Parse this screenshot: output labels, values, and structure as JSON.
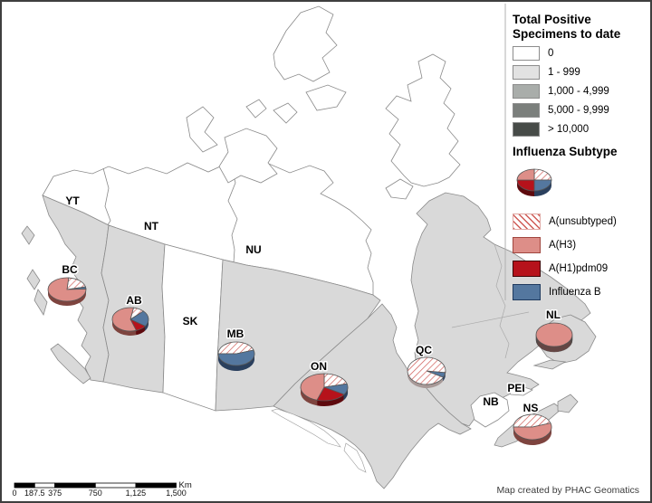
{
  "legend_specimens": {
    "title": "Total Positive Specimens to date",
    "classes": [
      {
        "label": "0",
        "color": "#ffffff"
      },
      {
        "label": "1 - 999",
        "color": "#e2e2e2"
      },
      {
        "label": "1,000 - 4,999",
        "color": "#a9adaa"
      },
      {
        "label": "5,000 - 9,999",
        "color": "#7b7f7c"
      },
      {
        "label": "> 10,000",
        "color": "#474b48"
      }
    ]
  },
  "legend_subtype": {
    "title": "Influenza Subtype",
    "items": [
      {
        "label": "A(unsubtyped)",
        "fill": "hatch",
        "border": "#dfa9a5",
        "rim": "#a89a98"
      },
      {
        "label": "A(H3)",
        "fill": "#dd8e88",
        "border": "#a0463f",
        "rim": "#7e443f"
      },
      {
        "label": "A(H1)pdm09",
        "fill": "#b6121b",
        "border": "#3d0406",
        "rim": "#5e0a0e"
      },
      {
        "label": "Influenza B",
        "fill": "#54779f",
        "border": "#1f3a5f",
        "rim": "#2b405e"
      }
    ],
    "example_slices": [
      {
        "label": "A(unsubtyped)",
        "pct": 25
      },
      {
        "label": "Influenza B",
        "pct": 25
      },
      {
        "label": "A(H1)pdm09",
        "pct": 25
      },
      {
        "label": "A(H3)",
        "pct": 25
      }
    ],
    "example_start_deg": 0
  },
  "map": {
    "region_labels": [
      "YT",
      "NT",
      "NU",
      "BC",
      "AB",
      "SK",
      "MB",
      "ON",
      "QC",
      "NL",
      "PEI",
      "NB",
      "NS"
    ]
  },
  "chart_data": [
    {
      "type": "pie",
      "region": "BC",
      "start_deg": 5,
      "slices": [
        {
          "label": "A(unsubtyped)",
          "pct": 20
        },
        {
          "label": "Influenza B",
          "pct": 3
        },
        {
          "label": "A(H3)",
          "pct": 77
        }
      ]
    },
    {
      "type": "pie",
      "region": "AB",
      "start_deg": 10,
      "slices": [
        {
          "label": "A(unsubtyped)",
          "pct": 10
        },
        {
          "label": "Influenza B",
          "pct": 22
        },
        {
          "label": "A(H1)pdm09",
          "pct": 10
        },
        {
          "label": "A(H3)",
          "pct": 58
        }
      ]
    },
    {
      "type": "pie",
      "region": "MB",
      "start_deg": 270,
      "slices": [
        {
          "label": "A(unsubtyped)",
          "pct": 45
        },
        {
          "label": "Influenza B",
          "pct": 55
        }
      ]
    },
    {
      "type": "pie",
      "region": "ON",
      "start_deg": 0,
      "slices": [
        {
          "label": "A(unsubtyped)",
          "pct": 21
        },
        {
          "label": "Influenza B",
          "pct": 13
        },
        {
          "label": "A(H1)pdm09",
          "pct": 21
        },
        {
          "label": "A(H3)",
          "pct": 45
        }
      ]
    },
    {
      "type": "pie",
      "region": "QC",
      "start_deg": 97,
      "slices": [
        {
          "label": "Influenza B",
          "pct": 6
        },
        {
          "label": "A(unsubtyped)",
          "pct": 94
        }
      ]
    },
    {
      "type": "pie",
      "region": "NL",
      "start_deg": 0,
      "slices": [
        {
          "label": "A(H3)",
          "pct": 100
        }
      ]
    },
    {
      "type": "pie",
      "region": "NS",
      "start_deg": 270,
      "slices": [
        {
          "label": "A(unsubtyped)",
          "pct": 45
        },
        {
          "label": "A(H3)",
          "pct": 55
        }
      ]
    }
  ],
  "scalebar": {
    "unit": "Km",
    "ticks": [
      "0",
      "187.5",
      "375",
      "750",
      "1,125",
      "1,500"
    ],
    "max_km": 1500
  },
  "footer": {
    "credit": "Map created by PHAC Geomatics"
  }
}
